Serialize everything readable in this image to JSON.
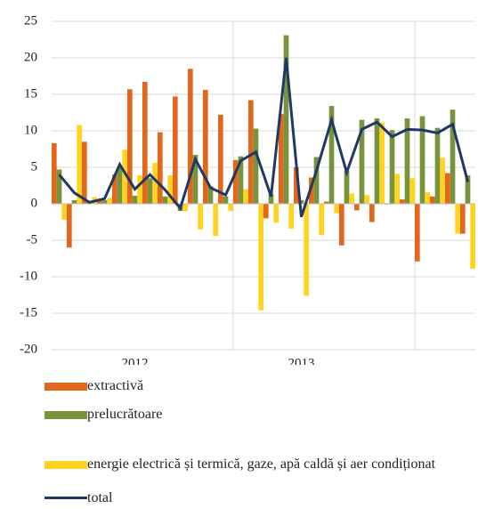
{
  "chart_data": {
    "type": "bar",
    "categories": [
      null,
      null,
      null,
      null,
      null,
      "2012",
      null,
      null,
      null,
      null,
      null,
      null,
      null,
      null,
      null,
      null,
      "2013",
      null,
      null,
      null,
      null,
      null,
      null,
      null,
      null,
      null,
      null,
      null
    ],
    "series": [
      {
        "name": "extractivă",
        "color": "#e2671c",
        "values": [
          8.3,
          -6.0,
          8.5,
          0.5,
          4.0,
          15.7,
          16.7,
          9.8,
          14.7,
          18.5,
          15.6,
          12.2,
          6.0,
          14.2,
          -2.0,
          12.3,
          5.0,
          3.6,
          0.3,
          -5.7,
          -0.9,
          -2.5,
          -0.1,
          0.6,
          -7.9,
          1.0,
          4.2,
          -4.1
        ]
      },
      {
        "name": "prelucrătoare",
        "color": "#77933c",
        "values": [
          4.7,
          0.5,
          0.3,
          0.5,
          5.0,
          1.1,
          3.5,
          1.0,
          -1.0,
          6.7,
          2.4,
          1.0,
          6.5,
          10.3,
          1.4,
          23.1,
          0.5,
          6.4,
          13.4,
          4.5,
          11.5,
          11.7,
          10.1,
          11.7,
          12.0,
          10.4,
          12.9,
          3.9
        ]
      },
      {
        "name": "energie electrică și termică, gaze, apă caldă și aer condiționat",
        "color": "#ffd320",
        "values": [
          -2.2,
          10.8,
          0.9,
          0.8,
          7.4,
          3.9,
          5.6,
          3.9,
          -1.0,
          -3.5,
          -4.4,
          -1.0,
          2.0,
          -14.6,
          -2.6,
          -3.4,
          -12.6,
          -4.3,
          -1.3,
          1.4,
          1.2,
          11.1,
          4.1,
          3.5,
          1.6,
          6.3,
          -4.1,
          -8.9
        ]
      },
      {
        "name": "total",
        "type": "line",
        "color": "#1f3864",
        "values": [
          4.0,
          1.5,
          0.2,
          0.7,
          5.4,
          2.0,
          4.0,
          1.9,
          -0.6,
          6.1,
          2.2,
          1.2,
          5.9,
          7.1,
          1.0,
          20.0,
          -1.8,
          4.5,
          11.5,
          4.3,
          10.2,
          11.2,
          9.2,
          10.2,
          10.1,
          9.7,
          10.9,
          3.0
        ]
      }
    ],
    "ylim": [
      -20,
      25
    ],
    "yticks": [
      -20,
      -15,
      -10,
      -5,
      0,
      5,
      10,
      15,
      20,
      25
    ],
    "grid": true
  }
}
